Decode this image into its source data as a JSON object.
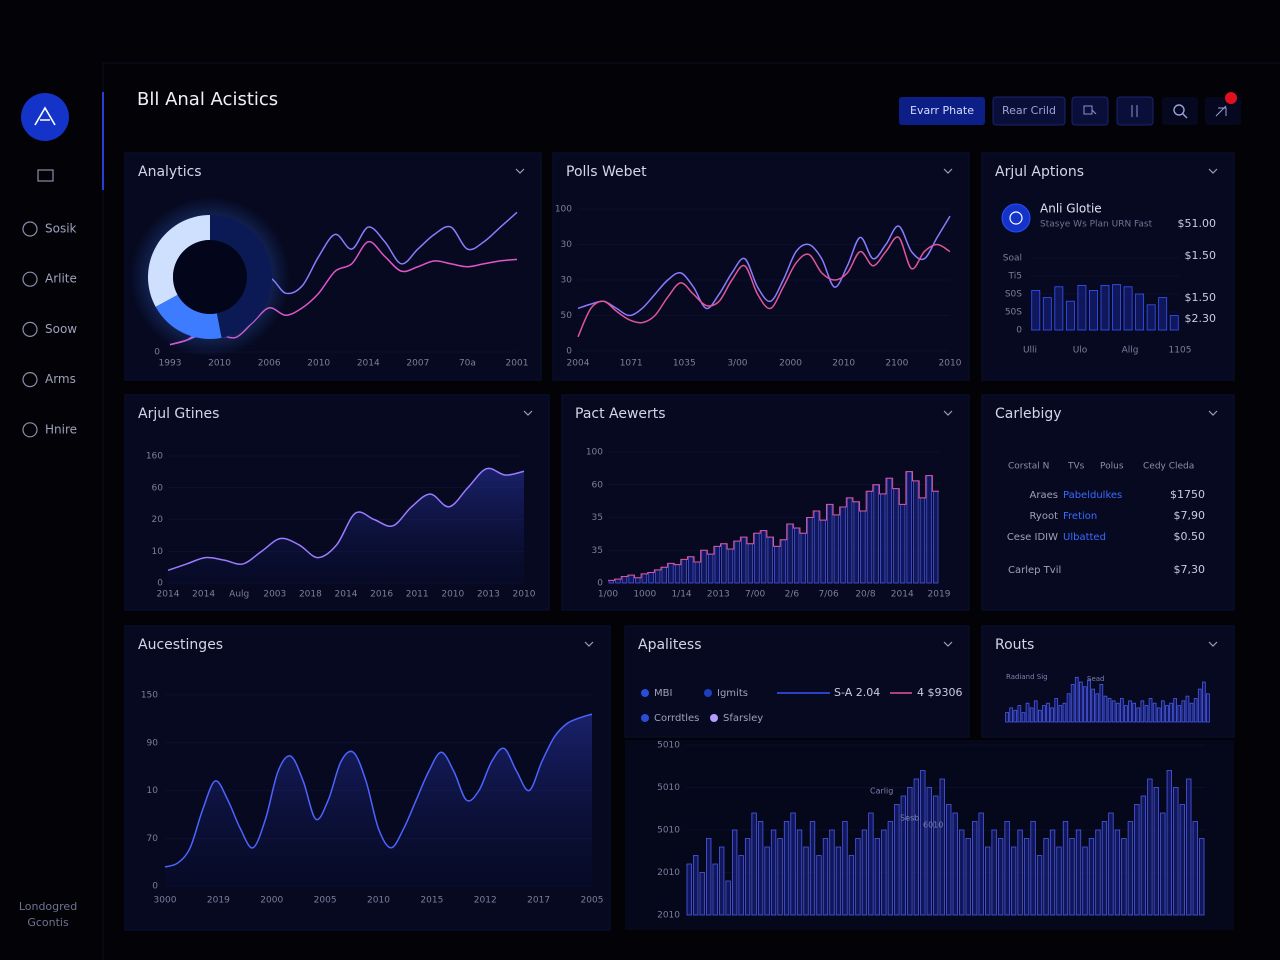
{
  "header": {
    "title": "Bll Anal Acistics",
    "buttons": [
      "Evarr Phate",
      "Rear Crild"
    ]
  },
  "sidebar": {
    "items": [
      "Sosik",
      "Arlite",
      "Soow",
      "Arms",
      "Hnire"
    ],
    "footer": [
      "Londogred",
      "Gcontis"
    ]
  },
  "panels": [
    {
      "title": "Analytics",
      "chart": {
        "type": "line",
        "ylim": [
          0,
          100
        ],
        "ylabels": [
          "0"
        ],
        "xlabels": [
          "1993",
          "2010",
          "2006",
          "2010",
          "2014",
          "2007",
          "70a",
          "2001"
        ],
        "donut": {
          "values": [
            33,
            20,
            47
          ],
          "colors": [
            "#cfe0ff",
            "#3d7cff",
            "#0b1a55"
          ]
        },
        "series": [
          {
            "color": "#8a7bff",
            "values": [
              5,
              8,
              12,
              10,
              15,
              35,
              50,
              40,
              45,
              65,
              80,
              70,
              85,
              75,
              60,
              70,
              80,
              85,
              70,
              75,
              85,
              95
            ]
          },
          {
            "color": "#e055c8",
            "values": [
              5,
              8,
              15,
              12,
              10,
              20,
              30,
              25,
              30,
              40,
              55,
              60,
              75,
              65,
              55,
              58,
              62,
              60,
              58,
              60,
              62,
              63
            ]
          }
        ]
      }
    },
    {
      "title": "Polls Webet",
      "chart": {
        "type": "line",
        "ylim": [
          0,
          100
        ],
        "ylabels": [
          "100",
          "30",
          "30",
          "50",
          "0"
        ],
        "xlabels": [
          "2004",
          "1071",
          "1035",
          "3/00",
          "2000",
          "2010",
          "2100",
          "2010"
        ],
        "series": [
          {
            "color": "#8a7bff",
            "values": [
              30,
              33,
              35,
              30,
              25,
              30,
              40,
              50,
              55,
              45,
              30,
              40,
              55,
              65,
              45,
              35,
              50,
              70,
              75,
              65,
              45,
              60,
              80,
              65,
              75,
              88,
              70,
              65,
              80,
              95
            ]
          },
          {
            "color": "#e0559a",
            "values": [
              10,
              30,
              35,
              28,
              22,
              20,
              25,
              38,
              48,
              40,
              32,
              35,
              50,
              60,
              40,
              30,
              45,
              62,
              68,
              55,
              50,
              55,
              70,
              60,
              70,
              80,
              58,
              70,
              75,
              70
            ]
          }
        ]
      }
    },
    {
      "title": "Arjul Aptions",
      "item": {
        "name": "Anli Glotie",
        "subtitle": "Stasye Ws Plan URN Fast",
        "value": "$51.00"
      },
      "side_values": [
        "$1.50",
        "$1.50",
        "$2.30"
      ],
      "chart": {
        "type": "bar",
        "ylim": [
          0,
          100
        ],
        "ylabels": [
          "Soal",
          "Ti5",
          "S0S",
          "50S",
          "0"
        ],
        "xlabels": [
          "Ulli",
          "Ulo",
          "Allg",
          "1105"
        ],
        "series": [
          {
            "color": "#3556ff",
            "values": [
              55,
              45,
              60,
              40,
              62,
              55,
              62,
              63,
              60,
              50,
              35,
              45,
              20
            ]
          }
        ]
      }
    },
    {
      "title": "Arjul Gtines",
      "chart": {
        "type": "area",
        "ylim": [
          0,
          100
        ],
        "ylabels": [
          "160",
          "60",
          "20",
          "10",
          "0"
        ],
        "xlabels": [
          "2014",
          "2014",
          "Aulg",
          "2003",
          "2018",
          "2014",
          "2016",
          "2011",
          "2010",
          "2013",
          "2010"
        ],
        "series": [
          {
            "color": "#9b7bff",
            "values": [
              10,
              15,
              20,
              18,
              15,
              25,
              35,
              30,
              20,
              30,
              55,
              50,
              45,
              60,
              70,
              60,
              75,
              90,
              85,
              88
            ]
          }
        ]
      }
    },
    {
      "title": "Pact Aewerts",
      "chart": {
        "type": "bar",
        "ylim": [
          0,
          100
        ],
        "ylabels": [
          "100",
          "60",
          "35",
          "35",
          "0"
        ],
        "outline": "#e0559a",
        "xlabels": [
          "1/00",
          "1000",
          "1/14",
          "2013",
          "7/00",
          "2/6",
          "7/06",
          "20/8",
          "2014",
          "2019"
        ],
        "series": [
          {
            "color": "#4a55e0",
            "values": [
              2,
              3,
              5,
              6,
              4,
              7,
              8,
              10,
              12,
              15,
              14,
              18,
              20,
              16,
              25,
              22,
              28,
              30,
              26,
              32,
              35,
              30,
              38,
              40,
              35,
              28,
              33,
              45,
              42,
              38,
              50,
              55,
              48,
              60,
              52,
              58,
              65,
              62,
              55,
              70,
              75,
              68,
              80,
              72,
              60,
              85,
              78,
              65,
              82,
              70
            ]
          }
        ]
      }
    },
    {
      "title": "Carlebigy",
      "table": {
        "header": [
          "Corstal N",
          "TVs",
          "Polus",
          "Cedy Cleda"
        ],
        "rows": [
          [
            "Araes",
            "Pabeldulkes",
            "$1750"
          ],
          [
            "Ryoot",
            "Fretion",
            "$7,90"
          ],
          [
            "Cese IDIW",
            "Ulbatted",
            "$0.50"
          ],
          [
            "Carlep Tvil",
            "$7,30"
          ]
        ]
      }
    },
    {
      "title": "Aucestinges",
      "chart": {
        "type": "area",
        "ylim": [
          0,
          100
        ],
        "ylabels": [
          "150",
          "90",
          "10",
          "70",
          "0"
        ],
        "xlabels": [
          "3000",
          "2019",
          "2000",
          "2005",
          "2010",
          "2015",
          "2012",
          "2017",
          "2005"
        ],
        "series": [
          {
            "color": "#4d63ff",
            "values": [
              10,
              12,
              20,
              40,
              55,
              45,
              30,
              20,
              35,
              60,
              68,
              55,
              35,
              45,
              65,
              70,
              55,
              30,
              20,
              30,
              45,
              60,
              70,
              60,
              45,
              50,
              65,
              72,
              60,
              50,
              65,
              78,
              85,
              88,
              90
            ]
          }
        ]
      }
    },
    {
      "title": "Apalitess",
      "legend": [
        {
          "label": "MBI",
          "color": "#2a4dd6"
        },
        {
          "label": "Igmits",
          "color": "#1d3fbf"
        },
        {
          "label": "Corrdtles",
          "color": "#2a4dd6"
        },
        {
          "label": "Sfarsley",
          "color": "#b49cff"
        }
      ],
      "line_legend": [
        {
          "label": "S-A 2.04",
          "color": "#3556ff"
        },
        {
          "label": "4 $9306",
          "color": "#e0559a"
        }
      ],
      "annotations": [
        "Carlig",
        "Sesb",
        "6010"
      ],
      "chart": {
        "type": "bar",
        "ylim": [
          0,
          100
        ],
        "ylabels": [
          "5010",
          "5010",
          "5010",
          "2010",
          "2010"
        ],
        "series": [
          {
            "color": "#4a5be8",
            "values": [
              30,
              35,
              25,
              45,
              30,
              40,
              20,
              50,
              35,
              45,
              60,
              55,
              40,
              50,
              45,
              55,
              60,
              50,
              40,
              55,
              35,
              45,
              50,
              40,
              55,
              35,
              45,
              50,
              60,
              45,
              50,
              55,
              65,
              70,
              75,
              80,
              85,
              75,
              70,
              80,
              65,
              60,
              50,
              45,
              55,
              60,
              40,
              50,
              45,
              55,
              40,
              50,
              45,
              55,
              35,
              45,
              50,
              40,
              55,
              45,
              50,
              40,
              45,
              50,
              55,
              60,
              50,
              45,
              55,
              65,
              70,
              80,
              75,
              60,
              85,
              75,
              65,
              80,
              55,
              45
            ]
          }
        ]
      }
    },
    {
      "title": "Routs",
      "annotations": [
        "Radiand Sig",
        "Sead"
      ],
      "chart": {
        "type": "bar",
        "ylim": [
          0,
          100
        ],
        "series": [
          {
            "color": "#4a5be8",
            "values": [
              20,
              30,
              25,
              35,
              20,
              40,
              30,
              45,
              25,
              35,
              40,
              30,
              50,
              35,
              40,
              60,
              80,
              95,
              85,
              75,
              90,
              70,
              60,
              80,
              55,
              50,
              45,
              40,
              50,
              35,
              45,
              40,
              30,
              45,
              35,
              50,
              40,
              30,
              45,
              35,
              40,
              50,
              35,
              45,
              55,
              40,
              50,
              70,
              85,
              60
            ]
          }
        ]
      }
    }
  ]
}
